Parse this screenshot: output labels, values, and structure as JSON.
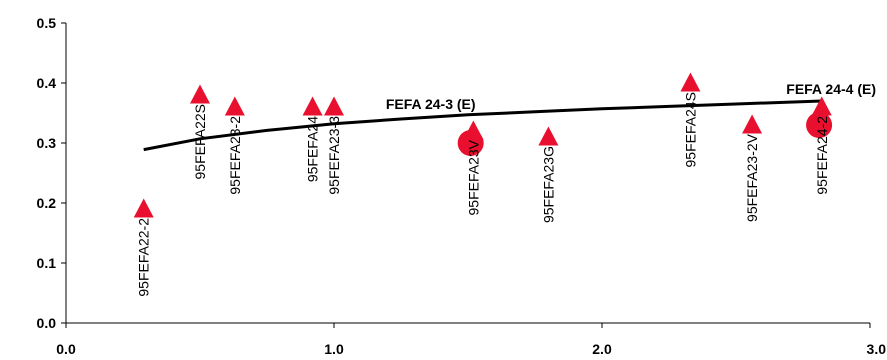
{
  "chart_data": {
    "type": "scatter",
    "xlim": [
      0,
      3
    ],
    "ylim": [
      0,
      0.5
    ],
    "xticks": [
      "0.0",
      "1.0",
      "2.0",
      "3.0"
    ],
    "yticks": [
      "0.0",
      "0.1",
      "0.2",
      "0.3",
      "0.4",
      "0.5"
    ],
    "grid": false,
    "legend": "none",
    "colors": {
      "markers": "#e8102e",
      "curve": "#000000"
    },
    "triangles": [
      {
        "x": 0.29,
        "y": 0.19,
        "label": "95FEFA22-2"
      },
      {
        "x": 0.5,
        "y": 0.38,
        "label": "95FEFA22S"
      },
      {
        "x": 0.63,
        "y": 0.36,
        "label": "95FEFA23-2"
      },
      {
        "x": 0.92,
        "y": 0.36,
        "label": "95FEFA24"
      },
      {
        "x": 1.0,
        "y": 0.36,
        "label": "95FEFA23-3"
      },
      {
        "x": 1.52,
        "y": 0.32,
        "label": "95FEFA23V"
      },
      {
        "x": 1.8,
        "y": 0.31,
        "label": "95FEFA23G"
      },
      {
        "x": 2.33,
        "y": 0.4,
        "label": "95FEFA24S"
      },
      {
        "x": 2.56,
        "y": 0.33,
        "label": "95FEFA23-2V"
      },
      {
        "x": 2.82,
        "y": 0.36,
        "label": "95FEFA24-2"
      }
    ],
    "circles": [
      {
        "x": 1.51,
        "y": 0.3,
        "label": "FEFA 24-3 (E)"
      },
      {
        "x": 2.81,
        "y": 0.33,
        "label": "FEFA 24-4 (E)"
      }
    ],
    "curve": {
      "x": [
        0.29,
        0.5,
        0.75,
        1.0,
        1.25,
        1.5,
        1.75,
        2.0,
        2.25,
        2.5,
        2.82
      ],
      "y": [
        0.289,
        0.307,
        0.321,
        0.332,
        0.34,
        0.347,
        0.352,
        0.357,
        0.361,
        0.365,
        0.37
      ]
    }
  }
}
